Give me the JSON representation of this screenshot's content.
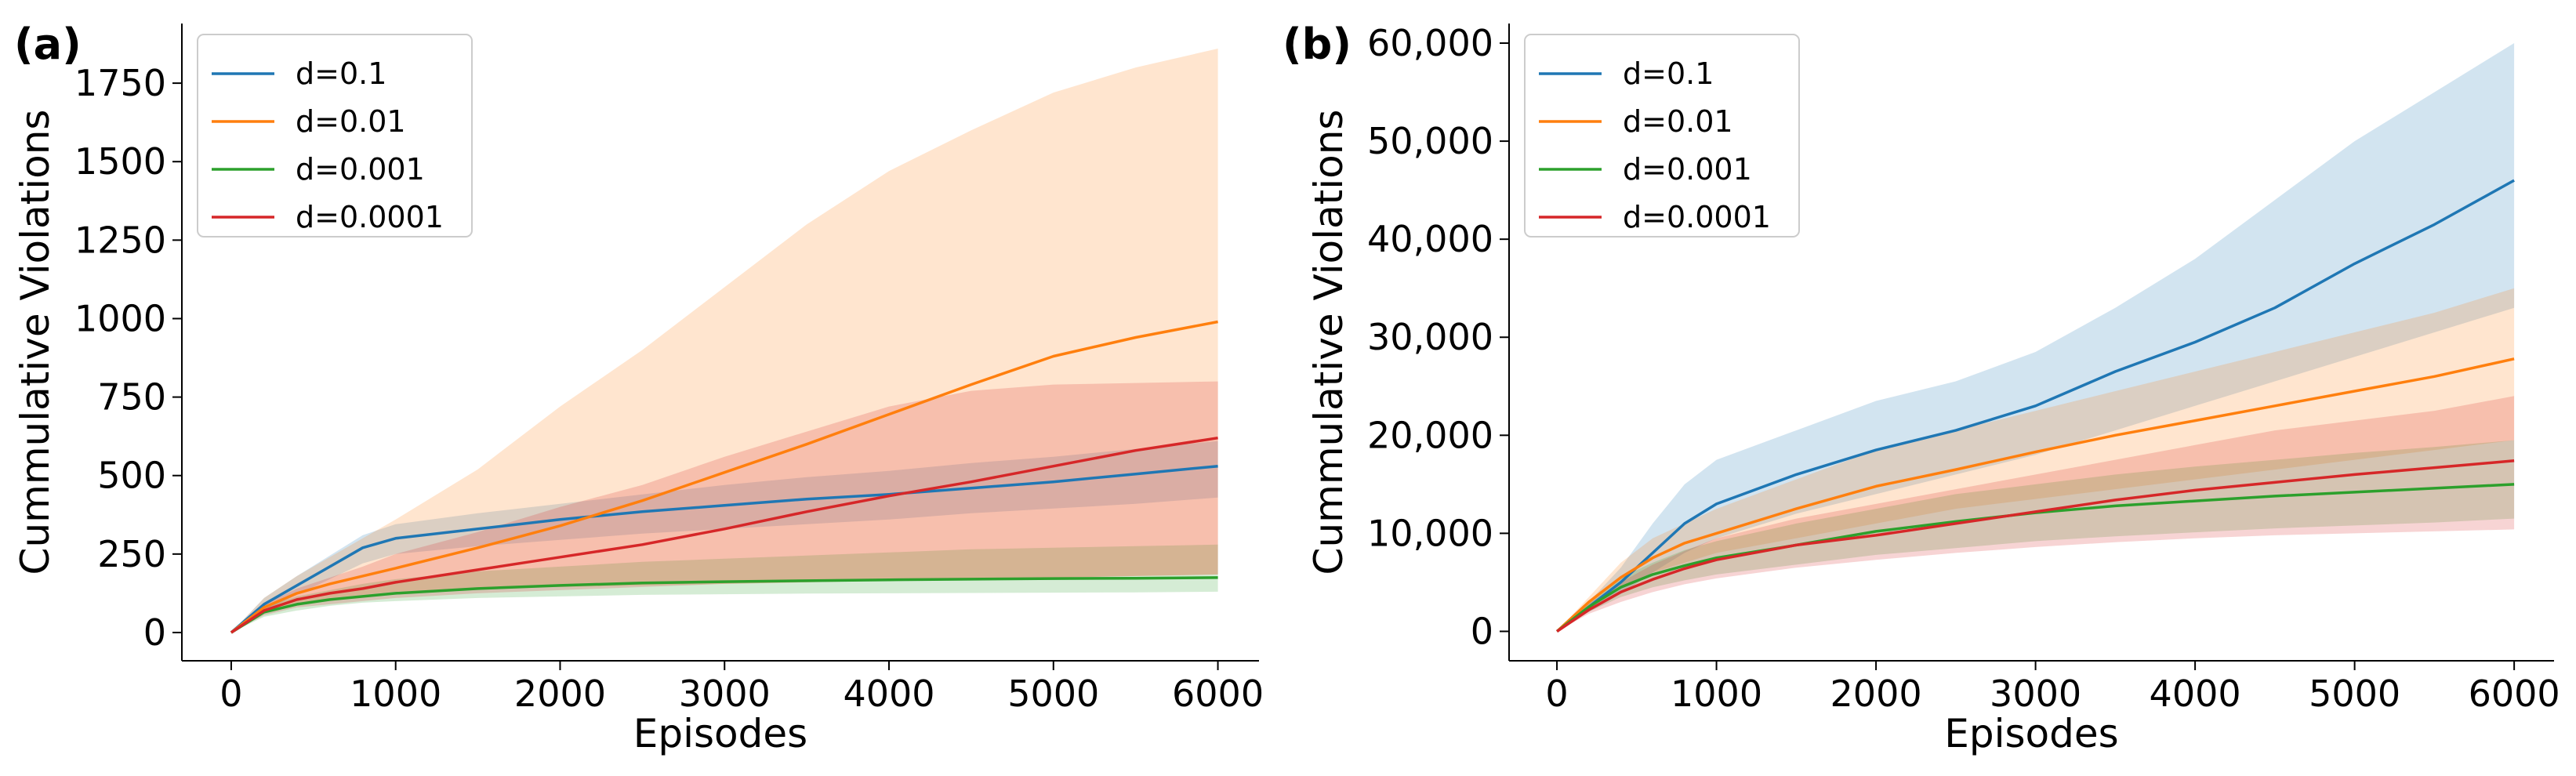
{
  "chart_data": [
    {
      "type": "line",
      "panel_label": "(a)",
      "xlabel": "Episodes",
      "ylabel": "Cummulative Violations",
      "xlim": [
        -300,
        6250
      ],
      "ylim": [
        -90,
        1940
      ],
      "xticks": [
        0,
        1000,
        2000,
        3000,
        4000,
        5000,
        6000
      ],
      "xtick_labels": [
        "0",
        "1000",
        "2000",
        "3000",
        "4000",
        "5000",
        "6000"
      ],
      "yticks": [
        0,
        250,
        500,
        750,
        1000,
        1250,
        1500,
        1750
      ],
      "ytick_labels": [
        "0",
        "250",
        "500",
        "750",
        "1000",
        "1250",
        "1500",
        "1750"
      ],
      "legend_position": "top-left",
      "series": [
        {
          "name": "d=0.1",
          "color": "#1f77b4",
          "x": [
            0,
            200,
            400,
            600,
            800,
            1000,
            1500,
            2000,
            2500,
            3000,
            3500,
            4000,
            4500,
            5000,
            5500,
            6000
          ],
          "mean": [
            0,
            90,
            150,
            210,
            270,
            300,
            330,
            360,
            385,
            405,
            425,
            440,
            460,
            480,
            505,
            530
          ],
          "lower": [
            0,
            70,
            120,
            170,
            220,
            250,
            275,
            295,
            315,
            330,
            345,
            360,
            380,
            395,
            410,
            430
          ],
          "upper": [
            0,
            110,
            180,
            245,
            310,
            345,
            380,
            410,
            440,
            470,
            495,
            515,
            540,
            560,
            585,
            610
          ]
        },
        {
          "name": "d=0.01",
          "color": "#ff7f0e",
          "x": [
            0,
            200,
            400,
            600,
            800,
            1000,
            1500,
            2000,
            2500,
            3000,
            3500,
            4000,
            4500,
            5000,
            5500,
            6000
          ],
          "mean": [
            0,
            80,
            125,
            155,
            180,
            205,
            270,
            340,
            420,
            510,
            600,
            695,
            790,
            880,
            940,
            990
          ],
          "lower": [
            0,
            60,
            90,
            110,
            120,
            130,
            140,
            145,
            150,
            155,
            160,
            165,
            170,
            175,
            180,
            185
          ],
          "upper": [
            0,
            110,
            180,
            240,
            300,
            360,
            520,
            720,
            900,
            1100,
            1300,
            1470,
            1600,
            1720,
            1800,
            1860
          ]
        },
        {
          "name": "d=0.001",
          "color": "#2ca02c",
          "x": [
            0,
            200,
            400,
            600,
            800,
            1000,
            1500,
            2000,
            2500,
            3000,
            3500,
            4000,
            4500,
            5000,
            5500,
            6000
          ],
          "mean": [
            0,
            65,
            90,
            105,
            115,
            125,
            140,
            150,
            158,
            162,
            165,
            168,
            170,
            172,
            173,
            175
          ],
          "lower": [
            0,
            50,
            70,
            85,
            95,
            100,
            110,
            115,
            120,
            122,
            124,
            125,
            126,
            127,
            128,
            130
          ],
          "upper": [
            0,
            80,
            115,
            135,
            155,
            170,
            195,
            210,
            225,
            235,
            245,
            255,
            265,
            270,
            275,
            280
          ]
        },
        {
          "name": "d=0.0001",
          "color": "#d62728",
          "x": [
            0,
            200,
            400,
            600,
            800,
            1000,
            1500,
            2000,
            2500,
            3000,
            3500,
            4000,
            4500,
            5000,
            5500,
            6000
          ],
          "mean": [
            0,
            70,
            105,
            125,
            140,
            160,
            200,
            240,
            280,
            330,
            385,
            435,
            480,
            530,
            580,
            620
          ],
          "lower": [
            0,
            55,
            80,
            90,
            100,
            110,
            125,
            135,
            145,
            155,
            160,
            165,
            170,
            175,
            180,
            185
          ],
          "upper": [
            0,
            90,
            140,
            175,
            210,
            250,
            320,
            400,
            470,
            560,
            640,
            720,
            770,
            790,
            795,
            800
          ]
        }
      ]
    },
    {
      "type": "line",
      "panel_label": "(b)",
      "xlabel": "Episodes",
      "ylabel": "Cummulative Violations",
      "xlim": [
        -300,
        6250
      ],
      "ylim": [
        -3000,
        62000
      ],
      "xticks": [
        0,
        1000,
        2000,
        3000,
        4000,
        5000,
        6000
      ],
      "xtick_labels": [
        "0",
        "1000",
        "2000",
        "3000",
        "4000",
        "5000",
        "6000"
      ],
      "yticks": [
        0,
        10000,
        20000,
        30000,
        40000,
        50000,
        60000
      ],
      "ytick_labels": [
        "0",
        "10,000",
        "20,000",
        "30,000",
        "40,000",
        "50,000",
        "60,000"
      ],
      "legend_position": "top-left",
      "series": [
        {
          "name": "d=0.1",
          "color": "#1f77b4",
          "x": [
            0,
            200,
            400,
            600,
            800,
            1000,
            1500,
            2000,
            2500,
            3000,
            3500,
            4000,
            4500,
            5000,
            5500,
            6000
          ],
          "mean": [
            0,
            2500,
            5000,
            8000,
            11000,
            13000,
            16000,
            18500,
            20500,
            23000,
            26500,
            29500,
            33000,
            37500,
            41500,
            46000
          ],
          "lower": [
            0,
            2000,
            3800,
            6000,
            8000,
            9500,
            12000,
            14000,
            16000,
            18000,
            20500,
            23000,
            25500,
            28000,
            30500,
            33000
          ],
          "upper": [
            0,
            3000,
            6500,
            11000,
            15000,
            17500,
            20500,
            23500,
            25500,
            28500,
            33000,
            38000,
            44000,
            50000,
            55000,
            60000
          ]
        },
        {
          "name": "d=0.01",
          "color": "#ff7f0e",
          "x": [
            0,
            200,
            400,
            600,
            800,
            1000,
            1500,
            2000,
            2500,
            3000,
            3500,
            4000,
            4500,
            5000,
            5500,
            6000
          ],
          "mean": [
            0,
            3000,
            5500,
            7500,
            9000,
            10000,
            12500,
            14800,
            16500,
            18300,
            20000,
            21500,
            23000,
            24500,
            26000,
            27800
          ],
          "lower": [
            0,
            2500,
            4500,
            6000,
            7000,
            8000,
            9500,
            11000,
            12500,
            13500,
            14500,
            15500,
            16500,
            17500,
            18500,
            19500
          ],
          "upper": [
            0,
            3500,
            7000,
            9500,
            11000,
            12500,
            15500,
            18500,
            20500,
            22500,
            24500,
            26500,
            28500,
            30500,
            32500,
            35000
          ]
        },
        {
          "name": "d=0.001",
          "color": "#2ca02c",
          "x": [
            0,
            200,
            400,
            600,
            800,
            1000,
            1500,
            2000,
            2500,
            3000,
            3500,
            4000,
            4500,
            5000,
            5500,
            6000
          ],
          "mean": [
            0,
            2500,
            4500,
            5800,
            6700,
            7500,
            8800,
            10200,
            11200,
            12100,
            12800,
            13300,
            13800,
            14200,
            14600,
            15000
          ],
          "lower": [
            0,
            2000,
            3500,
            4500,
            5200,
            5800,
            6800,
            7800,
            8500,
            9200,
            9700,
            10100,
            10500,
            10800,
            11100,
            11500
          ],
          "upper": [
            0,
            3000,
            5500,
            7000,
            8300,
            9200,
            11000,
            12500,
            14000,
            15000,
            16000,
            16800,
            17500,
            18200,
            18800,
            19500
          ]
        },
        {
          "name": "d=0.0001",
          "color": "#d62728",
          "x": [
            0,
            200,
            400,
            600,
            800,
            1000,
            1500,
            2000,
            2500,
            3000,
            3500,
            4000,
            4500,
            5000,
            5500,
            6000
          ],
          "mean": [
            0,
            2200,
            4000,
            5300,
            6400,
            7300,
            8800,
            9800,
            11000,
            12200,
            13400,
            14400,
            15200,
            16000,
            16700,
            17400
          ],
          "lower": [
            0,
            1800,
            3000,
            4000,
            4800,
            5400,
            6500,
            7300,
            8000,
            8600,
            9100,
            9500,
            9800,
            10000,
            10200,
            10400
          ],
          "upper": [
            0,
            2800,
            5000,
            6800,
            8200,
            9500,
            11500,
            13000,
            14500,
            16000,
            17500,
            19000,
            20500,
            21500,
            22500,
            24000
          ]
        }
      ]
    }
  ]
}
